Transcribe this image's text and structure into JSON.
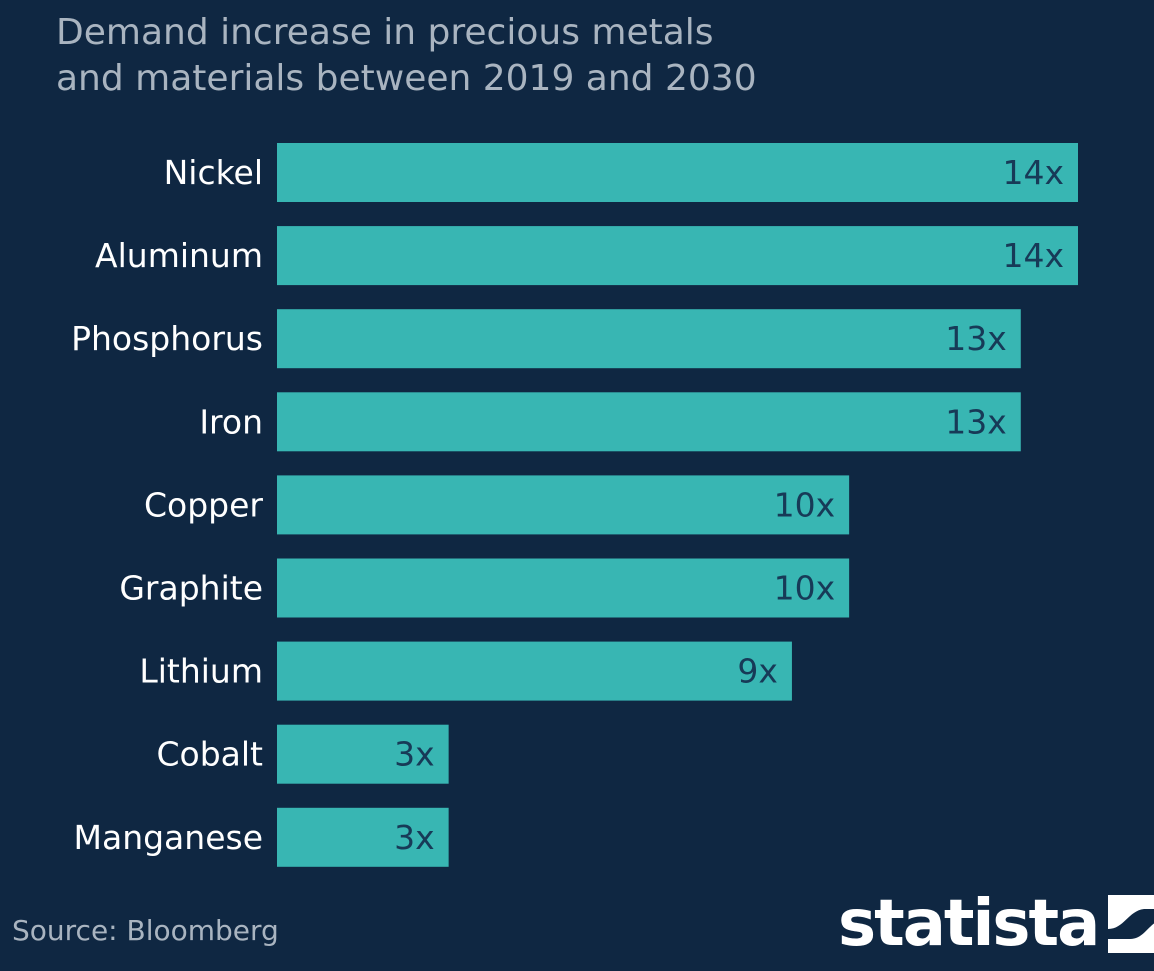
{
  "chart_data": {
    "type": "bar",
    "orientation": "horizontal",
    "title_lines": [
      "Demand increase in precious metals",
      "and materials between 2019 and 2030"
    ],
    "categories": [
      "Nickel",
      "Aluminum",
      "Phosphorus",
      "Iron",
      "Copper",
      "Graphite",
      "Lithium",
      "Cobalt",
      "Manganese"
    ],
    "values": [
      14,
      14,
      13,
      13,
      10,
      10,
      9,
      3,
      3
    ],
    "value_labels": [
      "14x",
      "14x",
      "13x",
      "13x",
      "10x",
      "10x",
      "9x",
      "3x",
      "3x"
    ],
    "xlim": [
      0,
      14
    ],
    "xlabel": "",
    "ylabel": "",
    "grid": false,
    "bar_color": "#38b6b3",
    "label_color": "#ffffff",
    "value_label_color": "#173a57"
  },
  "source": "Source: Bloomberg",
  "logo": {
    "wordmark": "statista",
    "icon": "statista-logo-icon"
  },
  "colors": {
    "background": "#0f2742",
    "title": "#a9b4c0",
    "source": "#a9b4c0"
  }
}
